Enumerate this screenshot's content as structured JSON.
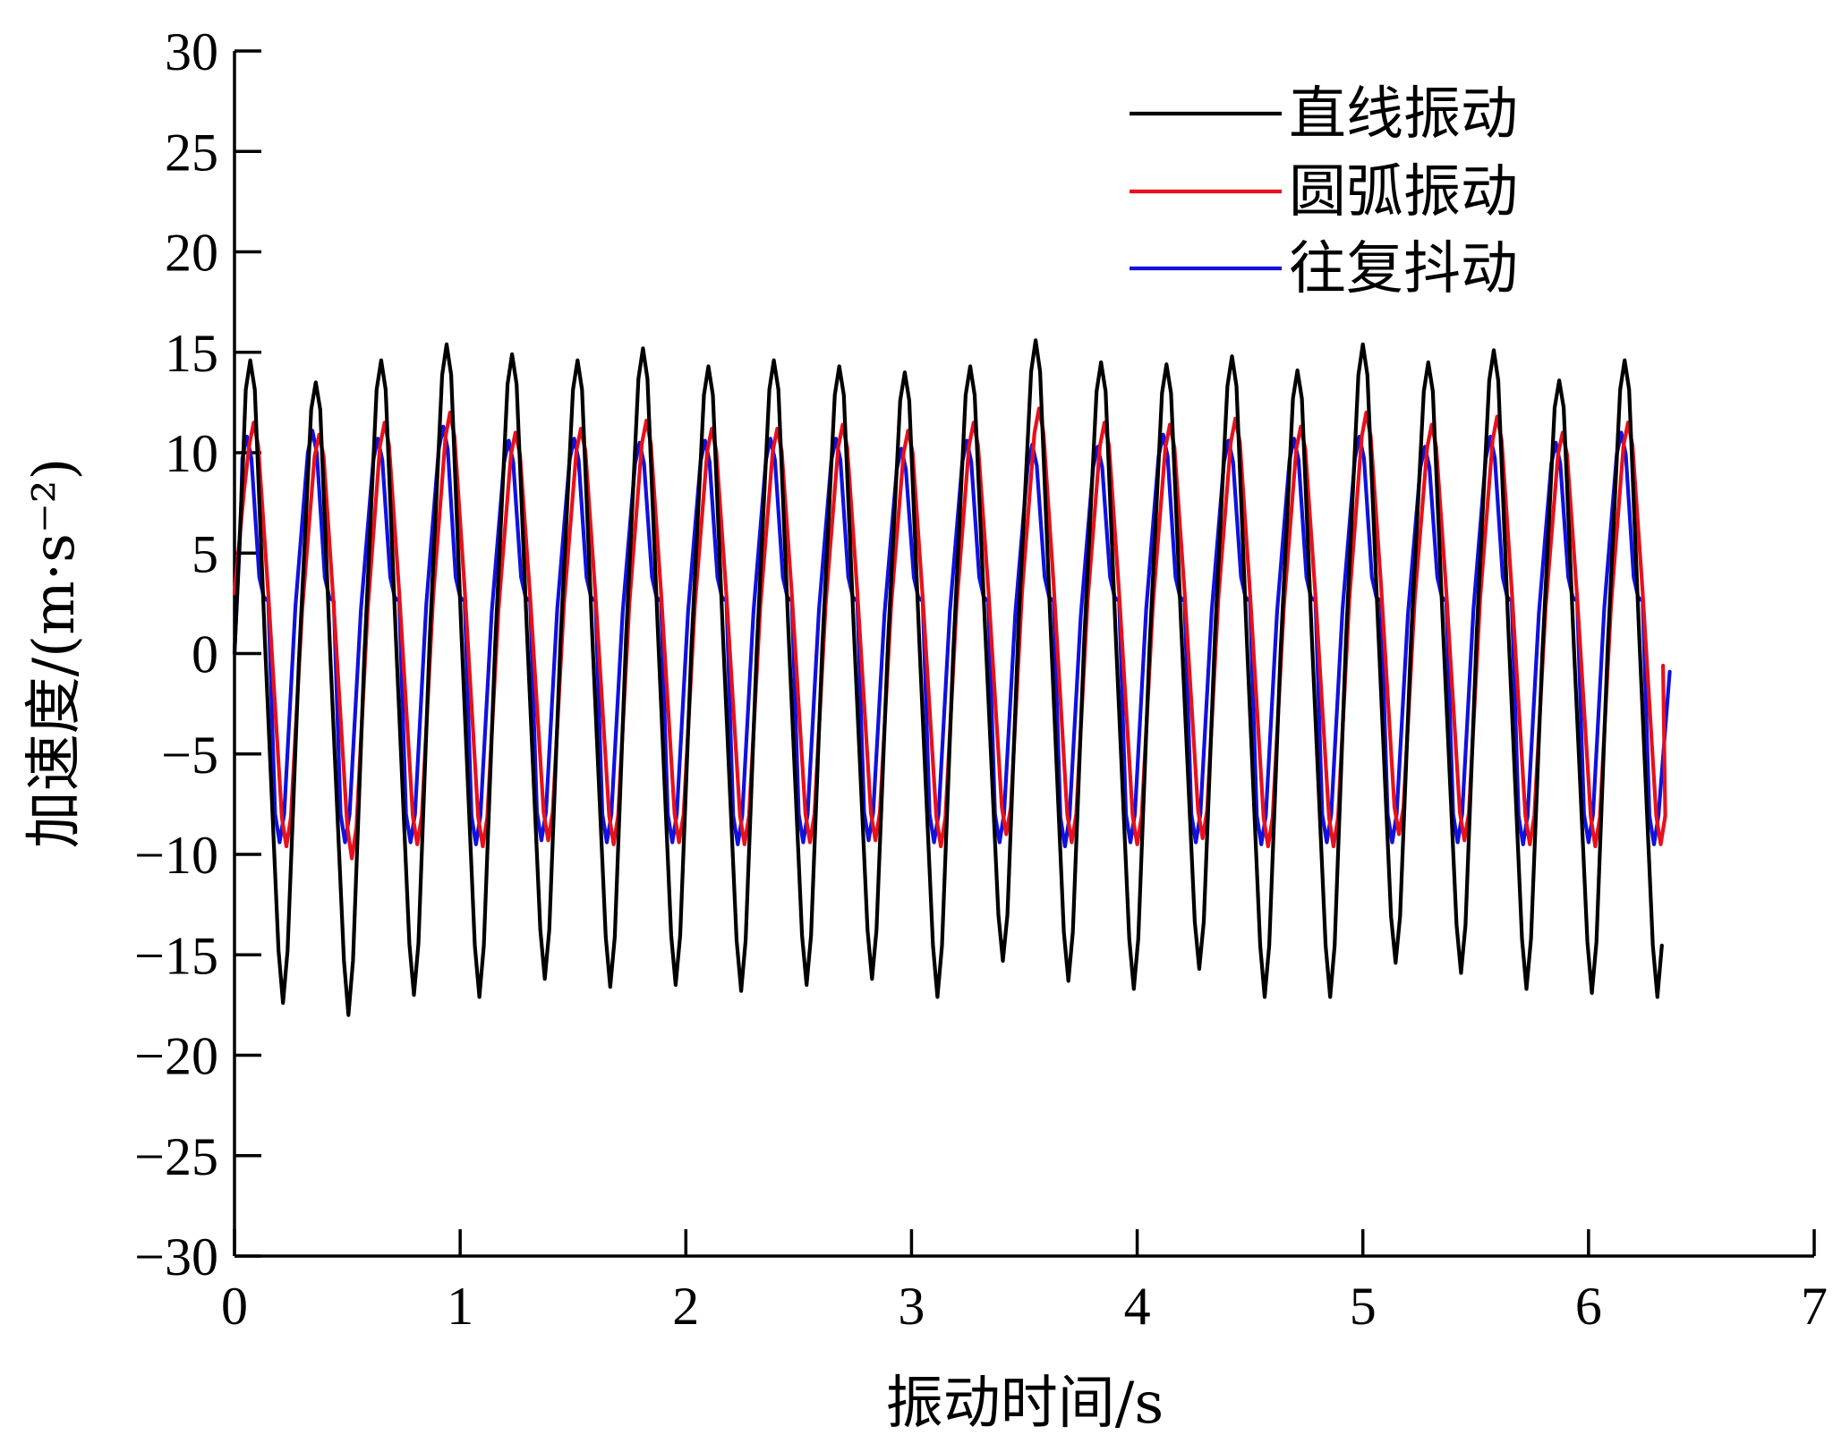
{
  "chart_data": {
    "type": "line",
    "title": "",
    "xlabel": "振动时间/s",
    "ylabel": "加速度/(m·s⁻²)",
    "xlim": [
      0,
      7
    ],
    "ylim": [
      -30,
      30
    ],
    "x_ticks": [
      0,
      1,
      2,
      3,
      4,
      5,
      6,
      7
    ],
    "y_ticks": [
      30,
      25,
      20,
      15,
      10,
      5,
      0,
      -5,
      -10,
      -15,
      -20,
      -25,
      -30
    ],
    "x_tick_labels": [
      "0",
      "1",
      "2",
      "3",
      "4",
      "5",
      "6",
      "7"
    ],
    "y_tick_labels": [
      "30",
      "25",
      "20",
      "15",
      "10",
      "5",
      "0",
      "−5",
      "−10",
      "−15",
      "−20",
      "−25",
      "−30"
    ],
    "grid": false,
    "legend_position": "top-right",
    "period_s": 0.29,
    "series": [
      {
        "name": "直线振动",
        "color": "#000000",
        "phase_s": 0.07,
        "x_end": 6.3,
        "peaks": [
          14.6,
          13.5,
          14.6,
          15.4,
          14.9,
          14.6,
          15.2,
          14.3,
          14.6,
          14.3,
          14.0,
          14.3,
          15.6,
          14.5,
          14.4,
          14.8,
          14.1,
          15.4,
          14.5,
          15.1,
          13.6,
          14.6
        ],
        "troughs": [
          -17.4,
          -18.0,
          -17.0,
          -17.1,
          -16.2,
          -16.6,
          -16.5,
          -16.8,
          -16.5,
          -16.2,
          -17.1,
          -15.3,
          -16.3,
          -16.7,
          -15.7,
          -17.1,
          -17.1,
          -15.4,
          -15.9,
          -16.7,
          -16.9,
          -17.1,
          -16.9
        ],
        "start_value": 0
      },
      {
        "name": "圆弧振动",
        "color": "#e8101b",
        "phase_s": 0.085,
        "x_end": 6.33,
        "end_value": -0.6,
        "peaks": [
          11.5,
          10.9,
          11.5,
          12.0,
          11.0,
          11.2,
          11.6,
          11.2,
          11.2,
          11.4,
          11.1,
          11.5,
          12.2,
          11.5,
          11.4,
          11.7,
          11.3,
          12.0,
          11.4,
          11.8,
          11.0,
          11.5
        ],
        "troughs": [
          -9.6,
          -10.2,
          -9.5,
          -9.6,
          -9.3,
          -9.5,
          -9.4,
          -9.5,
          -9.4,
          -9.3,
          -9.6,
          -9.0,
          -9.4,
          -9.5,
          -9.2,
          -9.6,
          -9.6,
          -9.0,
          -9.3,
          -9.5,
          -9.6,
          -9.5,
          -9.5
        ],
        "start_value": 3.0
      },
      {
        "name": "往复抖动",
        "color": "#1010e0",
        "phase_s": 0.055,
        "x_end": 6.36,
        "end_value": -0.9,
        "peaks": [
          10.8,
          11.1,
          10.7,
          11.3,
          10.6,
          10.7,
          10.5,
          10.6,
          10.7,
          10.7,
          10.2,
          10.6,
          10.4,
          10.3,
          10.9,
          10.6,
          10.7,
          10.8,
          10.3,
          10.8,
          10.5,
          11.0
        ],
        "troughs": [
          -9.4,
          -9.4,
          -9.4,
          -9.5,
          -9.3,
          -9.4,
          -9.4,
          -9.5,
          -9.4,
          -9.3,
          -9.4,
          -9.4,
          -9.6,
          -9.4,
          -9.4,
          -9.5,
          -9.4,
          -9.4,
          -9.4,
          -9.5,
          -9.4,
          -9.5,
          -9.3
        ],
        "shoulder": 2.8,
        "start_value": 0
      }
    ]
  }
}
